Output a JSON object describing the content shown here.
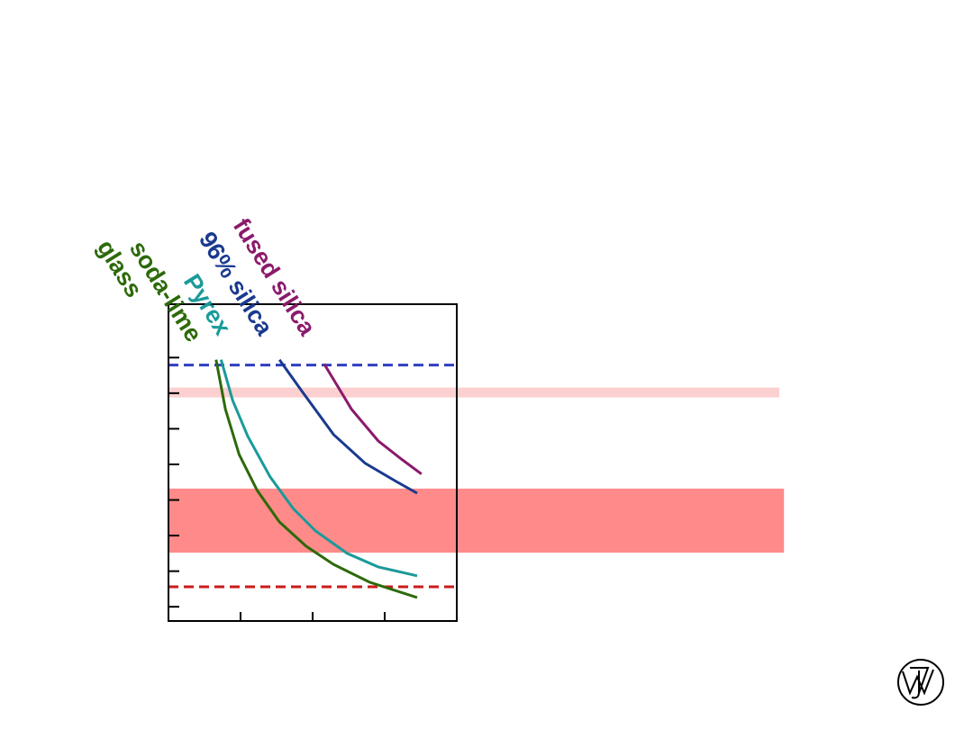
{
  "chart_data": {
    "type": "line",
    "xlim": [
      0,
      4
    ],
    "ylim": [
      0.6,
      9.5
    ],
    "xticks": [
      1,
      2,
      3
    ],
    "yticks": [
      1,
      2,
      3,
      4,
      5,
      6,
      7,
      8
    ],
    "series": [
      {
        "name": "fused silica",
        "color": "#8b1a6b",
        "x": [
          2.16,
          2.54,
          2.91,
          3.23,
          3.51
        ],
        "values": [
          7.82,
          6.55,
          5.66,
          5.15,
          4.73
        ]
      },
      {
        "name": "96% silica",
        "color": "#1a3a8f",
        "x": [
          1.54,
          1.85,
          2.29,
          2.73,
          3.16,
          3.45
        ],
        "values": [
          7.94,
          7.06,
          5.84,
          5.03,
          4.52,
          4.19
        ]
      },
      {
        "name": "Pyrex",
        "color": "#1a9a9a",
        "x": [
          0.73,
          0.89,
          1.1,
          1.41,
          1.73,
          2.04,
          2.48,
          2.91,
          3.45
        ],
        "values": [
          7.94,
          6.8,
          5.79,
          4.65,
          3.76,
          3.13,
          2.5,
          2.12,
          1.87
        ]
      },
      {
        "name": "soda-lime glass",
        "color": "#2d6a0a",
        "x": [
          0.66,
          0.79,
          0.98,
          1.23,
          1.54,
          1.91,
          2.29,
          2.79,
          3.45
        ],
        "values": [
          7.94,
          6.55,
          5.28,
          4.27,
          3.38,
          2.7,
          2.19,
          1.69,
          1.26
        ]
      }
    ],
    "bands": [
      {
        "y": [
          7.16,
          6.88
        ],
        "x": [
          0,
          8.475
        ],
        "color": "#fcd0d0"
      },
      {
        "y": [
          4.32,
          2.52
        ],
        "x": [
          0,
          8.54
        ],
        "color": "#ff8a8a"
      }
    ],
    "hlines": [
      {
        "y": 7.79,
        "x": [
          0,
          4
        ],
        "color": "#2f3fbf"
      },
      {
        "y": 1.56,
        "x": [
          0,
          4
        ],
        "color": "#cc1a1a"
      }
    ]
  }
}
